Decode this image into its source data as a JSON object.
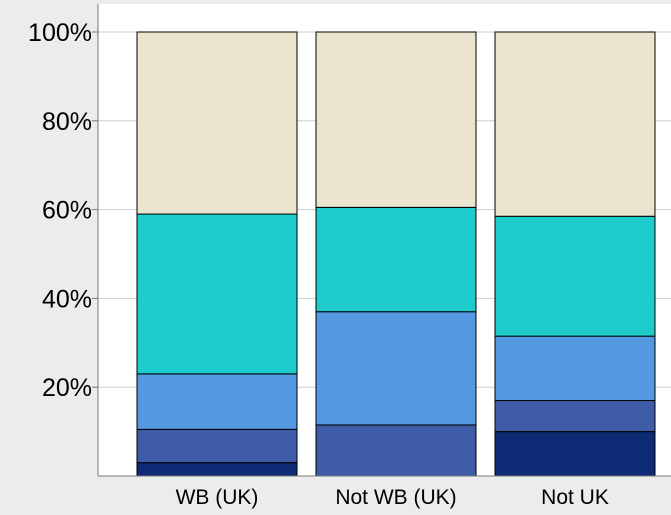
{
  "chart_data": {
    "type": "bar",
    "stacked": true,
    "percent": true,
    "categories": [
      "WB (UK)",
      "Not WB (UK)",
      "Not UK"
    ],
    "series": [
      {
        "color": "#0d2a74",
        "values": [
          3,
          0,
          10
        ]
      },
      {
        "color": "#3f5ca8",
        "values": [
          7.5,
          11.5,
          7
        ]
      },
      {
        "color": "#5598e2",
        "values": [
          12.5,
          25.5,
          14.5
        ]
      },
      {
        "color": "#1ecccc",
        "values": [
          36,
          23.5,
          27
        ]
      },
      {
        "color": "#ebe4cf",
        "values": [
          41,
          39.5,
          41.5
        ]
      }
    ],
    "y_ticks": [
      "20%",
      "40%",
      "60%",
      "80%",
      "100%"
    ],
    "y_tick_values": [
      20,
      40,
      60,
      80,
      100
    ],
    "ylim": [
      0,
      100
    ],
    "grid": true,
    "title": "",
    "xlabel": "",
    "ylabel": ""
  }
}
